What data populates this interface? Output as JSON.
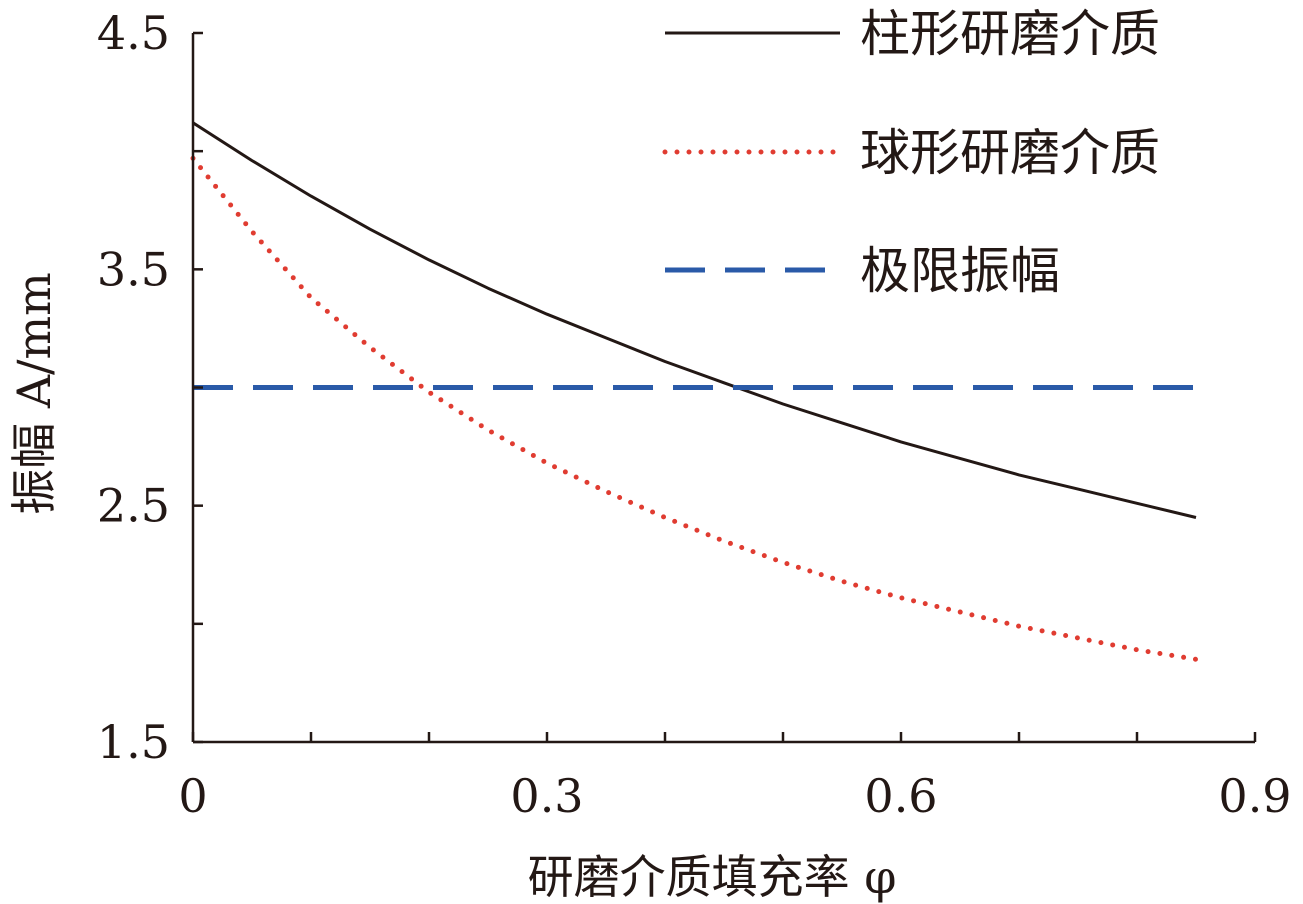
{
  "chart_data": {
    "type": "line",
    "xlabel": "研磨介质填充率 φ",
    "ylabel": "振幅 A/mm",
    "xlim": [
      0,
      0.9
    ],
    "ylim": [
      1.5,
      4.5
    ],
    "x_ticks": [
      0,
      0.1,
      0.2,
      0.3,
      0.4,
      0.5,
      0.6,
      0.7,
      0.8,
      0.9
    ],
    "x_tick_labels": [
      {
        "value": 0,
        "label": "0"
      },
      {
        "value": 0.3,
        "label": "0.3"
      },
      {
        "value": 0.6,
        "label": "0.6"
      },
      {
        "value": 0.9,
        "label": "0.9"
      }
    ],
    "y_ticks": [
      1.5,
      2.0,
      2.5,
      3.0,
      3.5,
      4.0,
      4.5
    ],
    "y_tick_labels": [
      {
        "value": 1.5,
        "label": "1.5"
      },
      {
        "value": 2.5,
        "label": "2.5"
      },
      {
        "value": 3.5,
        "label": "3.5"
      },
      {
        "value": 4.5,
        "label": "4.5"
      }
    ],
    "grid": false,
    "legend_position": "top-right",
    "series": [
      {
        "name": "柱形研磨介质",
        "style": "solid",
        "color": "#231815",
        "x": [
          0,
          0.05,
          0.1,
          0.15,
          0.2,
          0.25,
          0.3,
          0.35,
          0.4,
          0.45,
          0.5,
          0.55,
          0.6,
          0.65,
          0.7,
          0.75,
          0.8,
          0.85
        ],
        "y": [
          4.12,
          3.96,
          3.81,
          3.67,
          3.54,
          3.42,
          3.31,
          3.21,
          3.11,
          3.02,
          2.93,
          2.85,
          2.77,
          2.7,
          2.63,
          2.57,
          2.51,
          2.45
        ]
      },
      {
        "name": "球形研磨介质",
        "style": "dotted",
        "color": "#e03c31",
        "x": [
          0,
          0.05,
          0.1,
          0.15,
          0.2,
          0.25,
          0.3,
          0.35,
          0.4,
          0.45,
          0.5,
          0.55,
          0.6,
          0.65,
          0.7,
          0.75,
          0.8,
          0.85
        ],
        "y": [
          3.97,
          3.66,
          3.38,
          3.17,
          2.98,
          2.82,
          2.68,
          2.56,
          2.45,
          2.35,
          2.26,
          2.18,
          2.11,
          2.05,
          1.99,
          1.94,
          1.89,
          1.85
        ]
      },
      {
        "name": "极限振幅",
        "style": "dashed",
        "color": "#2a5aa8",
        "x": [
          0,
          0.85
        ],
        "y": [
          3.0,
          3.0
        ]
      }
    ]
  }
}
